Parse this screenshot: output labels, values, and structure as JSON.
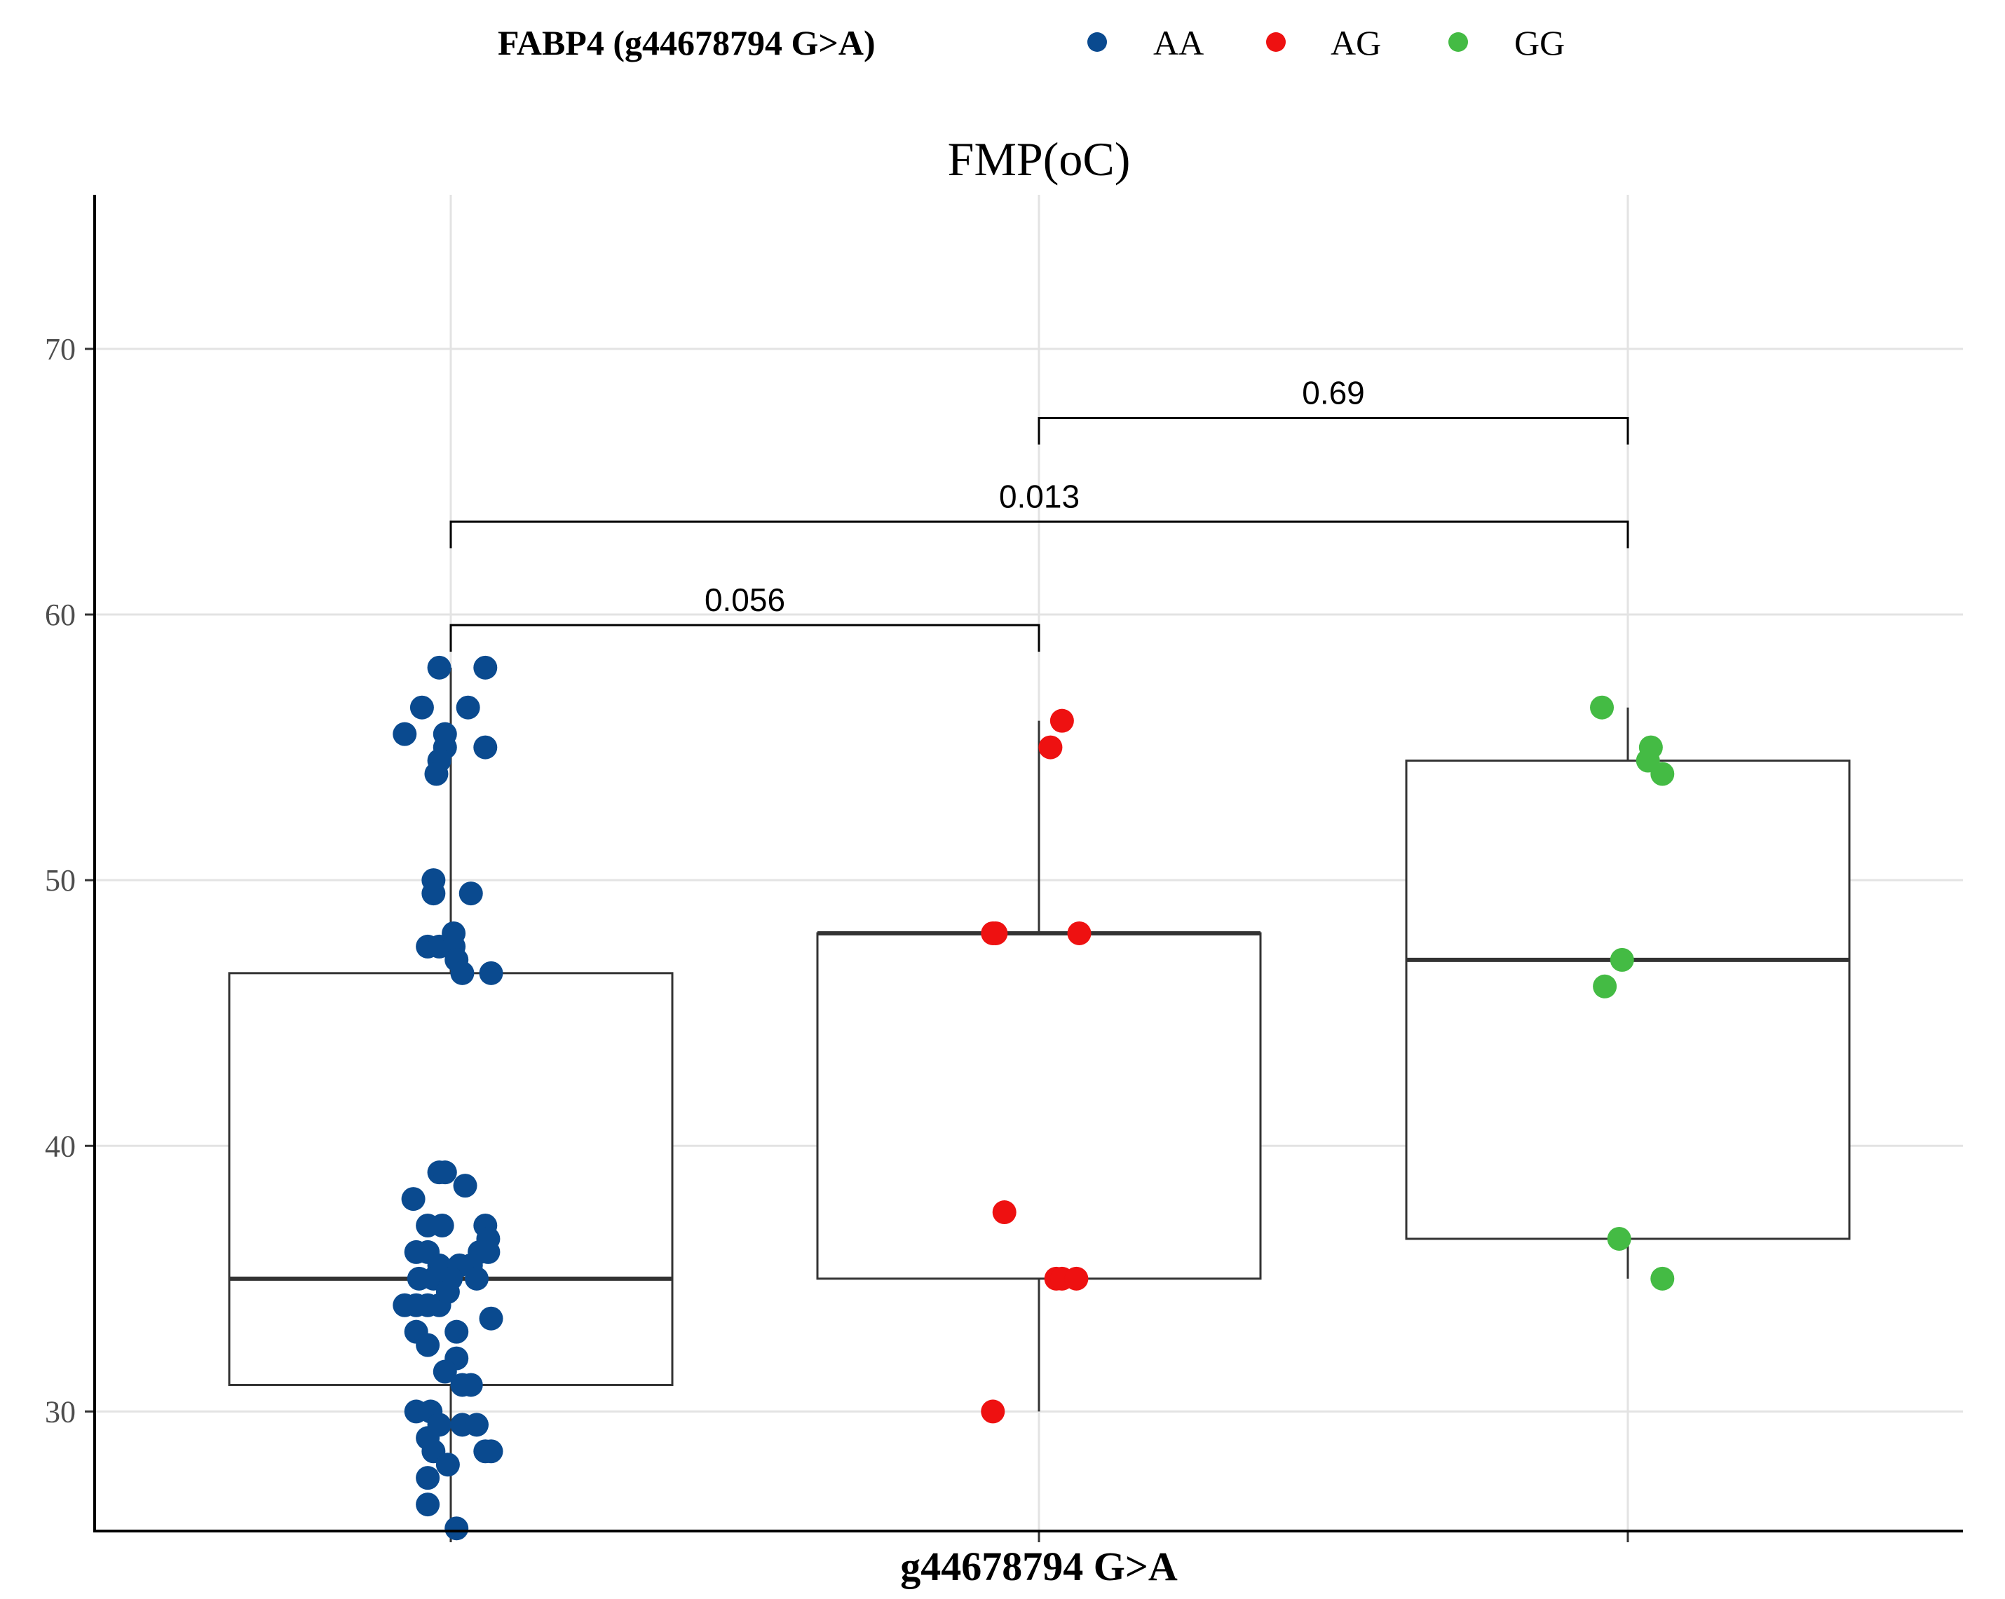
{
  "chart_data": {
    "type": "box",
    "title": "FMP(oC)",
    "xlabel": "g44678794 G>A",
    "ylabel": "",
    "ylim": [
      25.5,
      75.8
    ],
    "yticks": [
      30,
      40,
      50,
      60,
      70
    ],
    "grid": true,
    "legend": {
      "position": "top",
      "title": "FABP4 (g44678794 G>A)",
      "entries": [
        {
          "name": "AA",
          "color": "#0a4a8f"
        },
        {
          "name": "AG",
          "color": "#ee1111"
        },
        {
          "name": "GG",
          "color": "#44bb44"
        }
      ]
    },
    "categories": [
      "AA",
      "AG",
      "GG"
    ],
    "boxes": [
      {
        "name": "AA",
        "min": 25.5,
        "q1": 31,
        "median": 35,
        "q3": 46.5,
        "max": 58
      },
      {
        "name": "AG",
        "min": 30,
        "q1": 35,
        "median": 48,
        "q3": 48,
        "max": 56
      },
      {
        "name": "GG",
        "min": 35,
        "q1": 36.5,
        "median": 47,
        "q3": 54.5,
        "max": 56.5
      }
    ],
    "series": [
      {
        "name": "AA",
        "color": "#0a4a8f",
        "points": [
          [
            -0.02,
            58
          ],
          [
            0.06,
            58
          ],
          [
            -0.05,
            56.5
          ],
          [
            0.03,
            56.5
          ],
          [
            -0.08,
            55.5
          ],
          [
            -0.01,
            55.5
          ],
          [
            -0.01,
            55
          ],
          [
            0.06,
            55
          ],
          [
            -0.02,
            54.5
          ],
          [
            -0.025,
            54
          ],
          [
            -0.03,
            50
          ],
          [
            -0.03,
            49.5
          ],
          [
            0.035,
            49.5
          ],
          [
            0.005,
            48
          ],
          [
            -0.04,
            47.5
          ],
          [
            -0.02,
            47.5
          ],
          [
            0.005,
            47.5
          ],
          [
            0.01,
            47
          ],
          [
            0.02,
            46.5
          ],
          [
            0.07,
            46.5
          ],
          [
            -0.02,
            39
          ],
          [
            -0.01,
            39
          ],
          [
            0.025,
            38.5
          ],
          [
            -0.065,
            38
          ],
          [
            -0.04,
            37
          ],
          [
            -0.015,
            37
          ],
          [
            0.06,
            37
          ],
          [
            0.065,
            36.5
          ],
          [
            -0.06,
            36
          ],
          [
            -0.04,
            36
          ],
          [
            0.05,
            36
          ],
          [
            0.065,
            36
          ],
          [
            -0.02,
            35.5
          ],
          [
            0.015,
            35.5
          ],
          [
            0.035,
            35.5
          ],
          [
            -0.055,
            35
          ],
          [
            -0.03,
            35
          ],
          [
            0,
            35
          ],
          [
            0.045,
            35
          ],
          [
            -0.08,
            34
          ],
          [
            -0.06,
            34
          ],
          [
            -0.04,
            34
          ],
          [
            -0.02,
            34
          ],
          [
            -0.005,
            34.5
          ],
          [
            0.07,
            33.5
          ],
          [
            -0.06,
            33
          ],
          [
            -0.04,
            32.5
          ],
          [
            0.01,
            33
          ],
          [
            0.01,
            32
          ],
          [
            -0.01,
            31.5
          ],
          [
            0.02,
            31
          ],
          [
            0.035,
            31
          ],
          [
            -0.06,
            30
          ],
          [
            -0.035,
            30
          ],
          [
            -0.02,
            29.5
          ],
          [
            0.02,
            29.5
          ],
          [
            0.045,
            29.5
          ],
          [
            -0.04,
            29
          ],
          [
            -0.03,
            28.5
          ],
          [
            0.06,
            28.5
          ],
          [
            0.07,
            28.5
          ],
          [
            -0.005,
            28
          ],
          [
            -0.04,
            27.5
          ],
          [
            -0.04,
            26.5
          ],
          [
            0.01,
            25.6
          ]
        ]
      },
      {
        "name": "AG",
        "color": "#ee1111",
        "points": [
          [
            0.04,
            56
          ],
          [
            0.02,
            55
          ],
          [
            -0.08,
            48
          ],
          [
            -0.075,
            48
          ],
          [
            0.07,
            48
          ],
          [
            -0.06,
            37.5
          ],
          [
            0.03,
            35
          ],
          [
            0.04,
            35
          ],
          [
            0.065,
            35
          ],
          [
            -0.08,
            30
          ]
        ]
      },
      {
        "name": "GG",
        "color": "#44bb44",
        "points": [
          [
            -0.045,
            56.5
          ],
          [
            0.04,
            55
          ],
          [
            0.035,
            54.5
          ],
          [
            0.06,
            54
          ],
          [
            -0.01,
            47
          ],
          [
            -0.04,
            46
          ],
          [
            -0.015,
            36.5
          ],
          [
            0.06,
            35
          ]
        ]
      }
    ],
    "comparisons": [
      {
        "groups": [
          "AA",
          "AG"
        ],
        "p": "0.056"
      },
      {
        "groups": [
          "AA",
          "GG"
        ],
        "p": "0.013"
      },
      {
        "groups": [
          "AG",
          "GG"
        ],
        "p": "0.69"
      }
    ]
  }
}
